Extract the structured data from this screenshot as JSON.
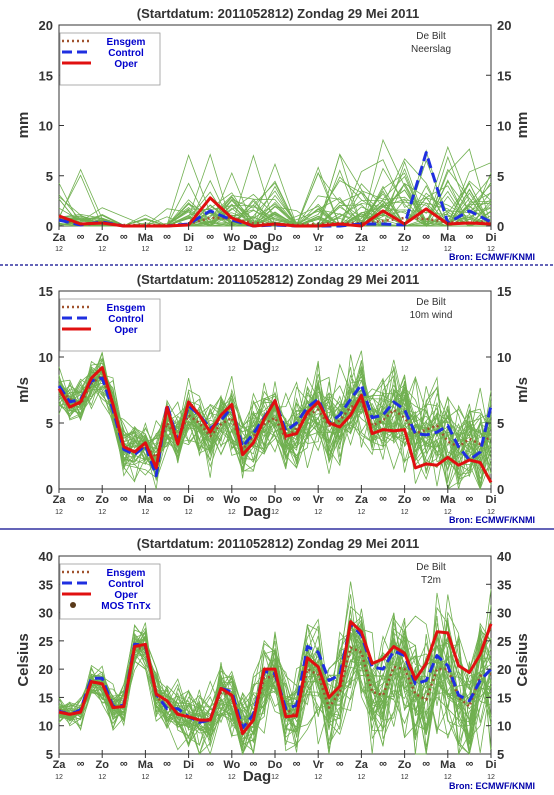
{
  "colors": {
    "members": "#70b050",
    "ensgem": "#a0522d",
    "control": "#1f2fe0",
    "oper": "#e01010",
    "mos": "#5a3a1a",
    "legend_text": "#0000cc",
    "separator": "#3030a0",
    "frame": "#333333"
  },
  "title": "(Startdatum: 2011052812)   Zondag   29 Mei   2011",
  "location": "De Bilt",
  "source": "Bron: ECMWF/KNMI",
  "xlabel": "Dag",
  "days": [
    "Za",
    "Zo",
    "Ma",
    "Di",
    "Wo",
    "Do",
    "Vr",
    "Za",
    "Zo",
    "Ma",
    "Di"
  ],
  "hour_label": "12",
  "legend": {
    "ensgem": "Ensgem",
    "control": "Control",
    "oper": "Oper",
    "mos": "MOS TnTx"
  },
  "chart_data": [
    {
      "type": "line",
      "variable": "Neerslag",
      "ylabel": "mm",
      "ylim": [
        0,
        20
      ],
      "yticks": [
        0,
        5,
        10,
        15,
        20
      ],
      "x_days": [
        0,
        0.5,
        1,
        1.5,
        2,
        2.5,
        3,
        3.5,
        4,
        4.5,
        5,
        5.5,
        6,
        6.5,
        7,
        7.5,
        8,
        8.5,
        9,
        9.5,
        10
      ],
      "series": [
        {
          "name": "Ensgem",
          "values": [
            0.7,
            0.2,
            0.3,
            0.1,
            0.1,
            0.1,
            0.2,
            0.8,
            0.8,
            0.3,
            0.2,
            0.1,
            0.2,
            0.3,
            0.3,
            0.5,
            0.8,
            0.7,
            0.4,
            0.3,
            0.5
          ]
        },
        {
          "name": "Control",
          "values": [
            0.6,
            0.1,
            0.4,
            0.0,
            0.0,
            0.0,
            0.2,
            1.5,
            0.6,
            0.0,
            0.1,
            0.0,
            0.0,
            0.0,
            0.2,
            0.2,
            0.1,
            7.3,
            0.3,
            1.5,
            0.4
          ]
        },
        {
          "name": "Oper",
          "values": [
            1.0,
            0.2,
            0.3,
            0.0,
            0.0,
            0.0,
            0.1,
            2.8,
            0.8,
            0.0,
            0.2,
            0.0,
            0.0,
            0.2,
            0.0,
            1.5,
            0.2,
            1.7,
            0.2,
            0.3,
            0.2
          ]
        }
      ]
    },
    {
      "type": "line",
      "variable": "10m wind",
      "ylabel": "m/s",
      "ylim": [
        0,
        15
      ],
      "yticks": [
        0,
        5,
        10,
        15
      ],
      "x_days": [
        0,
        0.25,
        0.5,
        0.75,
        1,
        1.25,
        1.5,
        1.75,
        2,
        2.25,
        2.5,
        2.75,
        3,
        3.25,
        3.5,
        3.75,
        4,
        4.25,
        4.5,
        4.75,
        5,
        5.25,
        5.5,
        5.75,
        6,
        6.25,
        6.5,
        6.75,
        7,
        7.25,
        7.5,
        7.75,
        8,
        8.25,
        8.5,
        8.75,
        9,
        9.25,
        9.5,
        9.75,
        10
      ],
      "series": [
        {
          "name": "Ensgem",
          "values": [
            7.6,
            6.8,
            6.4,
            8.0,
            8.6,
            6.2,
            3.0,
            2.9,
            3.2,
            2.4,
            5.0,
            3.8,
            5.6,
            5.0,
            4.0,
            4.9,
            5.4,
            3.0,
            4.0,
            4.9,
            5.4,
            3.8,
            4.6,
            5.6,
            6.0,
            4.8,
            5.2,
            6.2,
            6.6,
            4.8,
            5.2,
            6.0,
            5.4,
            4.2,
            4.5,
            4.8,
            3.6,
            3.2,
            3.8,
            3.4,
            4.0
          ]
        },
        {
          "name": "Control",
          "values": [
            7.8,
            6.6,
            6.8,
            8.2,
            8.4,
            6.0,
            3.0,
            2.6,
            3.3,
            1.0,
            6.4,
            3.6,
            6.3,
            5.6,
            4.6,
            5.2,
            6.2,
            3.2,
            4.2,
            5.4,
            6.7,
            4.4,
            5.0,
            6.2,
            6.8,
            5.0,
            5.6,
            6.8,
            7.9,
            5.4,
            5.6,
            6.6,
            6.0,
            4.2,
            4.1,
            4.3,
            4.8,
            3.2,
            2.2,
            2.8,
            6.3
          ]
        },
        {
          "name": "Oper",
          "values": [
            7.6,
            6.2,
            6.6,
            8.4,
            9.2,
            6.4,
            3.2,
            2.8,
            3.5,
            1.6,
            6.2,
            3.4,
            6.6,
            5.6,
            4.3,
            5.6,
            6.4,
            2.6,
            3.5,
            5.3,
            6.7,
            4.0,
            4.2,
            5.8,
            6.6,
            5.0,
            4.7,
            5.6,
            7.1,
            4.2,
            4.5,
            4.4,
            4.5,
            1.6,
            1.9,
            1.8,
            2.4,
            1.8,
            2.2,
            2.0,
            0.5
          ]
        }
      ]
    },
    {
      "type": "line",
      "variable": "T2m",
      "ylabel": "Celsius",
      "ylim": [
        5,
        40
      ],
      "yticks": [
        5,
        10,
        15,
        20,
        25,
        30,
        35,
        40
      ],
      "x_days": [
        0,
        0.25,
        0.5,
        0.75,
        1,
        1.25,
        1.5,
        1.75,
        2,
        2.25,
        2.5,
        2.75,
        3,
        3.25,
        3.5,
        3.75,
        4,
        4.25,
        4.5,
        4.75,
        5,
        5.25,
        5.5,
        5.75,
        6,
        6.25,
        6.5,
        6.75,
        7,
        7.25,
        7.5,
        7.75,
        8,
        8.25,
        8.5,
        8.75,
        9,
        9.25,
        9.5,
        9.75,
        10
      ],
      "series": [
        {
          "name": "Ensgem",
          "values": [
            12.8,
            12.0,
            12.6,
            17.6,
            17.6,
            13.2,
            13.4,
            23.6,
            23.8,
            15.2,
            13.2,
            12.2,
            11.4,
            11.0,
            11.2,
            15.8,
            15.4,
            9.8,
            11.2,
            18.4,
            18.8,
            13.0,
            11.6,
            20.0,
            19.0,
            13.2,
            16.0,
            23.8,
            23.0,
            16.0,
            15.4,
            20.4,
            20.0,
            15.6,
            14.6,
            20.0,
            20.0,
            15.0,
            13.4,
            18.8,
            19.2
          ]
        },
        {
          "name": "Control",
          "values": [
            12.6,
            12.0,
            12.8,
            18.4,
            18.4,
            13.4,
            13.6,
            24.4,
            24.2,
            15.6,
            13.0,
            13.0,
            11.6,
            10.6,
            11.0,
            16.6,
            16.0,
            9.6,
            12.0,
            19.6,
            19.2,
            13.0,
            13.6,
            24.0,
            23.0,
            18.0,
            19.0,
            28.0,
            26.0,
            20.4,
            20.0,
            23.2,
            22.4,
            17.4,
            18.0,
            22.4,
            20.6,
            15.4,
            14.4,
            18.0,
            20.0
          ]
        },
        {
          "name": "Oper",
          "values": [
            12.4,
            12.0,
            12.4,
            17.8,
            17.4,
            13.2,
            13.4,
            24.0,
            24.4,
            15.6,
            14.4,
            12.0,
            11.6,
            11.0,
            11.0,
            16.6,
            15.4,
            8.6,
            11.0,
            20.0,
            20.0,
            11.6,
            11.8,
            22.0,
            20.4,
            15.0,
            17.0,
            28.4,
            26.6,
            21.0,
            21.8,
            24.0,
            22.8,
            18.2,
            21.0,
            26.6,
            26.4,
            20.6,
            19.4,
            22.6,
            28.0
          ]
        },
        {
          "name": "MOS TnTx",
          "values": []
        }
      ]
    }
  ]
}
